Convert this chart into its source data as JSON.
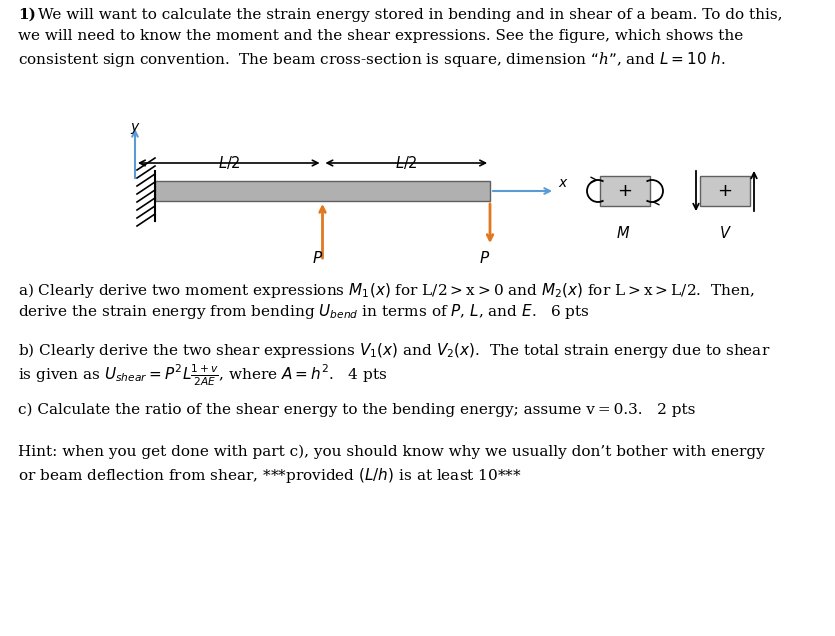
{
  "bg_color": "#ffffff",
  "text_color": "#000000",
  "orange_color": "#e07820",
  "blue_color": "#5b9bd5",
  "gray_color": "#a0a0a0",
  "dark_gray": "#808080",
  "paragraph1": "1) We will want to calculate the strain energy stored in bending and in shear of a beam. To do this,\nwe will need to know the moment and the shear expressions. See the figure, which shows the\nconsistent sign convention.  The beam cross-section is square, dimension “h”, and L = 10 h.",
  "paragraph_a": "a) Clearly derive two moment expressions M₁(x) for L/2 > x > 0 and M₂(x) for L > x > L/2.  Then,\nderive the strain energy from bending Uₛᵉⁿᵈ in terms of P, L, and E.   6 pts",
  "paragraph_b": "b) Clearly derive the two shear expressions V₁(x) and V₂(x).  The total strain energy due to shear\nis given as Uₛʰᵉᵃʳ = P²L(1+v)/(2AE), where A = h².   4 pts",
  "paragraph_c": "c) Calculate the ratio of the shear energy to the bending energy; assume v = 0.3.   2 pts",
  "paragraph_hint": "Hint: when you get done with part c), you should know why we usually don’t bother with energy\nor beam deflection from shear, ***provided (L/h) is at least 10***",
  "fig_width": 8.35,
  "fig_height": 6.36
}
